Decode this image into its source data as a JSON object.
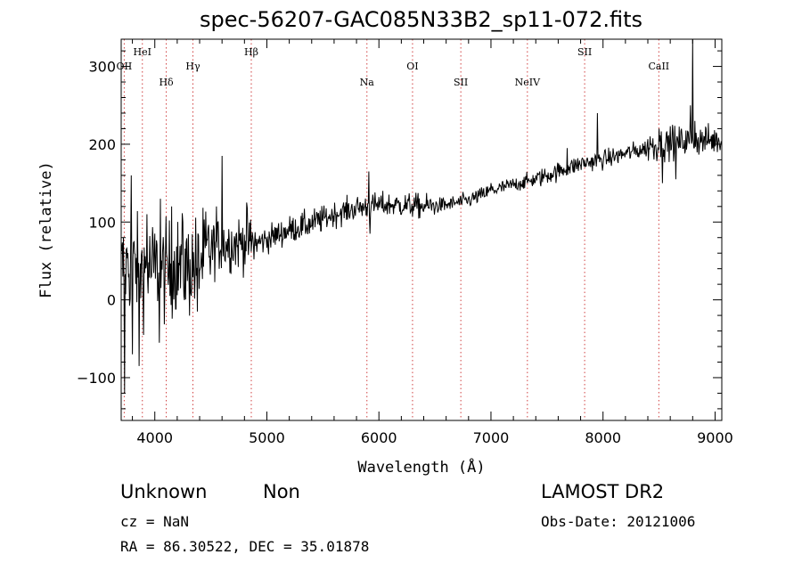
{
  "chart_data": {
    "type": "line",
    "title": "spec-56207-GAC085N33B2_sp11-072.fits",
    "xlabel": "Wavelength (Å)",
    "ylabel": "Flux (relative)",
    "xlim": [
      3700,
      9060
    ],
    "ylim": [
      -155,
      335
    ],
    "xticks": [
      4000,
      5000,
      6000,
      7000,
      8000,
      9000
    ],
    "yticks": [
      -100,
      0,
      100,
      200,
      300
    ],
    "grid": false,
    "line_color": "#000000",
    "marker_line_color": "#d04040",
    "spectral_lines": [
      {
        "label": "OII",
        "wavelength": 3727,
        "row": 1
      },
      {
        "label": "HeI",
        "wavelength": 3889,
        "row": 0
      },
      {
        "label": "Hδ",
        "wavelength": 4102,
        "row": 2
      },
      {
        "label": "Hγ",
        "wavelength": 4340,
        "row": 1
      },
      {
        "label": "Hβ",
        "wavelength": 4861,
        "row": 0
      },
      {
        "label": "Na",
        "wavelength": 5893,
        "row": 2
      },
      {
        "label": "OI",
        "wavelength": 6300,
        "row": 1
      },
      {
        "label": "SII",
        "wavelength": 6731,
        "row": 2
      },
      {
        "label": "NeIV",
        "wavelength": 7325,
        "row": 2
      },
      {
        "label": "SII",
        "wavelength": 7836,
        "row": 0
      },
      {
        "label": "CaII",
        "wavelength": 8498,
        "row": 1
      }
    ],
    "continuum": {
      "x": [
        3700,
        3800,
        3900,
        4000,
        4100,
        4200,
        4300,
        4400,
        4500,
        4600,
        4700,
        4800,
        4900,
        5000,
        5200,
        5400,
        5600,
        5800,
        6000,
        6200,
        6400,
        6600,
        6800,
        7000,
        7200,
        7400,
        7600,
        7800,
        8000,
        8200,
        8400,
        8600,
        8800,
        9000,
        9050
      ],
      "y": [
        40,
        45,
        38,
        42,
        35,
        45,
        40,
        48,
        65,
        72,
        72,
        75,
        72,
        78,
        90,
        98,
        110,
        118,
        122,
        122,
        120,
        122,
        128,
        140,
        148,
        155,
        165,
        175,
        180,
        188,
        195,
        202,
        205,
        205,
        205
      ]
    },
    "features": [
      {
        "x": 3730,
        "y": -120
      },
      {
        "x": 3760,
        "y": 60
      },
      {
        "x": 3790,
        "y": 160
      },
      {
        "x": 3800,
        "y": -70
      },
      {
        "x": 3860,
        "y": -85
      },
      {
        "x": 3930,
        "y": 110
      },
      {
        "x": 4040,
        "y": -55
      },
      {
        "x": 4050,
        "y": 130
      },
      {
        "x": 4150,
        "y": 120
      },
      {
        "x": 4250,
        "y": 100
      },
      {
        "x": 4380,
        "y": -15
      },
      {
        "x": 4550,
        "y": 120
      },
      {
        "x": 4600,
        "y": 185
      },
      {
        "x": 4820,
        "y": 125
      },
      {
        "x": 5910,
        "y": 165
      },
      {
        "x": 5920,
        "y": 85
      },
      {
        "x": 7000,
        "y": 150
      },
      {
        "x": 7680,
        "y": 195
      },
      {
        "x": 7950,
        "y": 240
      },
      {
        "x": 8420,
        "y": 210
      },
      {
        "x": 8500,
        "y": 220
      },
      {
        "x": 8530,
        "y": 150
      },
      {
        "x": 8620,
        "y": 225
      },
      {
        "x": 8650,
        "y": 155
      },
      {
        "x": 8780,
        "y": 250
      },
      {
        "x": 8800,
        "y": 335
      },
      {
        "x": 8820,
        "y": 230
      },
      {
        "x": 9020,
        "y": 190
      }
    ]
  },
  "footer": {
    "class_label": "Unknown",
    "subclass_label": "Non",
    "survey": "LAMOST DR2",
    "cz": "cz = NaN",
    "obs_date": "Obs-Date: 20121006",
    "coords": "RA =  86.30522, DEC =  35.01878"
  }
}
